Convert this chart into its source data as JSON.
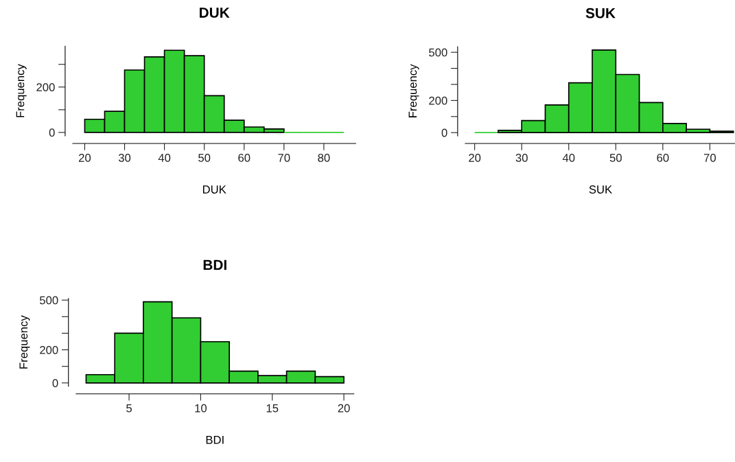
{
  "chart_data": [
    {
      "type": "histogram",
      "title": "DUK",
      "xlabel": "DUK",
      "ylabel": "Frequency",
      "color": "#32cd32",
      "bins": [
        20,
        25,
        30,
        35,
        40,
        45,
        50,
        55,
        60,
        65,
        70,
        75,
        80,
        85
      ],
      "values": [
        58,
        93,
        275,
        333,
        362,
        338,
        162,
        54,
        24,
        15,
        0,
        0,
        0
      ],
      "xlim": [
        17,
        88
      ],
      "ylim": [
        -15,
        380
      ],
      "xticks": [
        20,
        30,
        40,
        50,
        60,
        70,
        80
      ],
      "yticks": [
        0,
        {
          "value": 100,
          "label": null
        },
        200,
        {
          "value": 300,
          "label": null
        }
      ],
      "grid": false
    },
    {
      "type": "histogram",
      "title": "SUK",
      "xlabel": "SUK",
      "ylabel": "Frequency",
      "color": "#32cd32",
      "bins": [
        20,
        25,
        30,
        35,
        40,
        45,
        50,
        55,
        60,
        65,
        70,
        75
      ],
      "values": [
        0,
        14,
        75,
        172,
        310,
        514,
        362,
        187,
        57,
        21,
        9
      ],
      "xlim": [
        18,
        75.5
      ],
      "ylim": [
        -20,
        535
      ],
      "xticks": [
        20,
        30,
        40,
        50,
        60,
        70
      ],
      "yticks": [
        0,
        {
          "value": 100,
          "label": null
        },
        200,
        {
          "value": 300,
          "label": null
        },
        {
          "value": 400,
          "label": null
        },
        500
      ],
      "grid": false
    },
    {
      "type": "histogram",
      "title": "BDI",
      "xlabel": "BDI",
      "ylabel": "Frequency",
      "color": "#32cd32",
      "bins": [
        2,
        4,
        6,
        8,
        10,
        12,
        14,
        16,
        18,
        20
      ],
      "values": [
        50,
        300,
        490,
        393,
        249,
        71,
        44,
        71,
        38
      ],
      "xlim": [
        1.3,
        20.7
      ],
      "ylim": [
        -20,
        510
      ],
      "xticks": [
        5,
        10,
        15,
        20
      ],
      "yticks": [
        0,
        {
          "value": 100,
          "label": null
        },
        200,
        {
          "value": 300,
          "label": null
        },
        {
          "value": 400,
          "label": null
        },
        500
      ],
      "grid": false
    }
  ]
}
